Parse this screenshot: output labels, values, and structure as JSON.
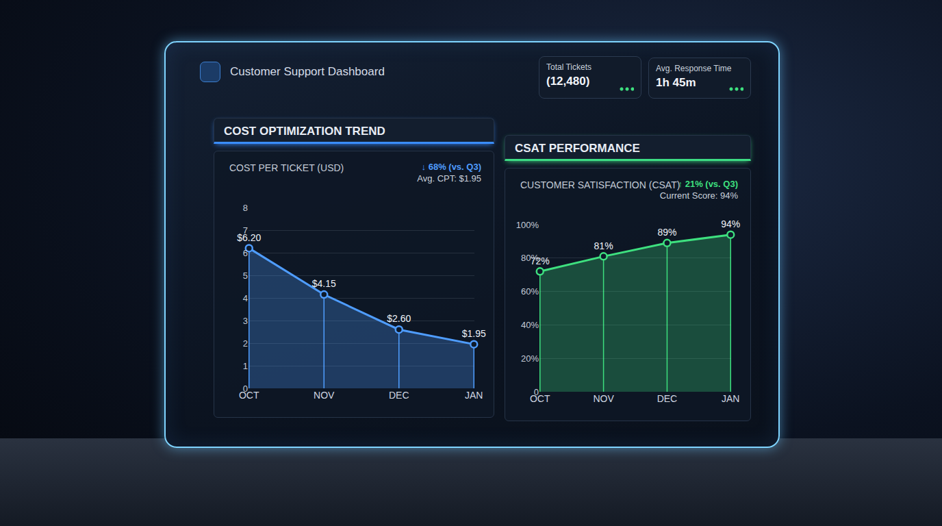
{
  "header": {
    "title": "Customer Support Dashboard"
  },
  "kpis": [
    {
      "label": "Total Tickets",
      "value": "(12,480)"
    },
    {
      "label": "Avg. Response Time",
      "value": "1h 45m"
    }
  ],
  "chart_data": [
    {
      "type": "area",
      "title": "COST OPTIMIZATION TREND",
      "subtitle": "COST PER TICKET (USD)",
      "annotations": [
        "↓ 68% (vs. Q3)",
        "Avg. CPT: $1.95"
      ],
      "categories": [
        "OCT",
        "NOV",
        "DEC",
        "JAN"
      ],
      "values": [
        6.2,
        4.15,
        2.6,
        1.95
      ],
      "value_labels": [
        "$6.20",
        "$4.15",
        "$2.60",
        "$1.95"
      ],
      "data_labels": true,
      "color": "#4f9dff",
      "marker": "circle",
      "ylim": [
        0,
        8
      ],
      "yticks": [
        0,
        1,
        2,
        3,
        4,
        5,
        6,
        7,
        8
      ],
      "grid": true
    },
    {
      "type": "area",
      "title": "CSAT PERFORMANCE",
      "subtitle": "CUSTOMER SATISFACTION (CSAT)",
      "annotations": [
        "↑ 21% (vs. Q3)",
        "Current Score: 94%"
      ],
      "categories": [
        "OCT",
        "NOV",
        "DEC",
        "JAN"
      ],
      "values": [
        72,
        81,
        89,
        94
      ],
      "value_labels": [
        "72%",
        "81%",
        "89%",
        "94%"
      ],
      "data_labels": true,
      "color": "#3ee07f",
      "marker": "circle",
      "ylim": [
        0,
        100
      ],
      "yticks": [
        0,
        {
          "value": 20,
          "label": "20%"
        },
        {
          "value": 40,
          "label": "40%"
        },
        {
          "value": 60,
          "label": "60%"
        },
        {
          "value": 80,
          "label": "80%"
        },
        {
          "value": 100,
          "label": "100%"
        }
      ],
      "grid": true
    }
  ]
}
